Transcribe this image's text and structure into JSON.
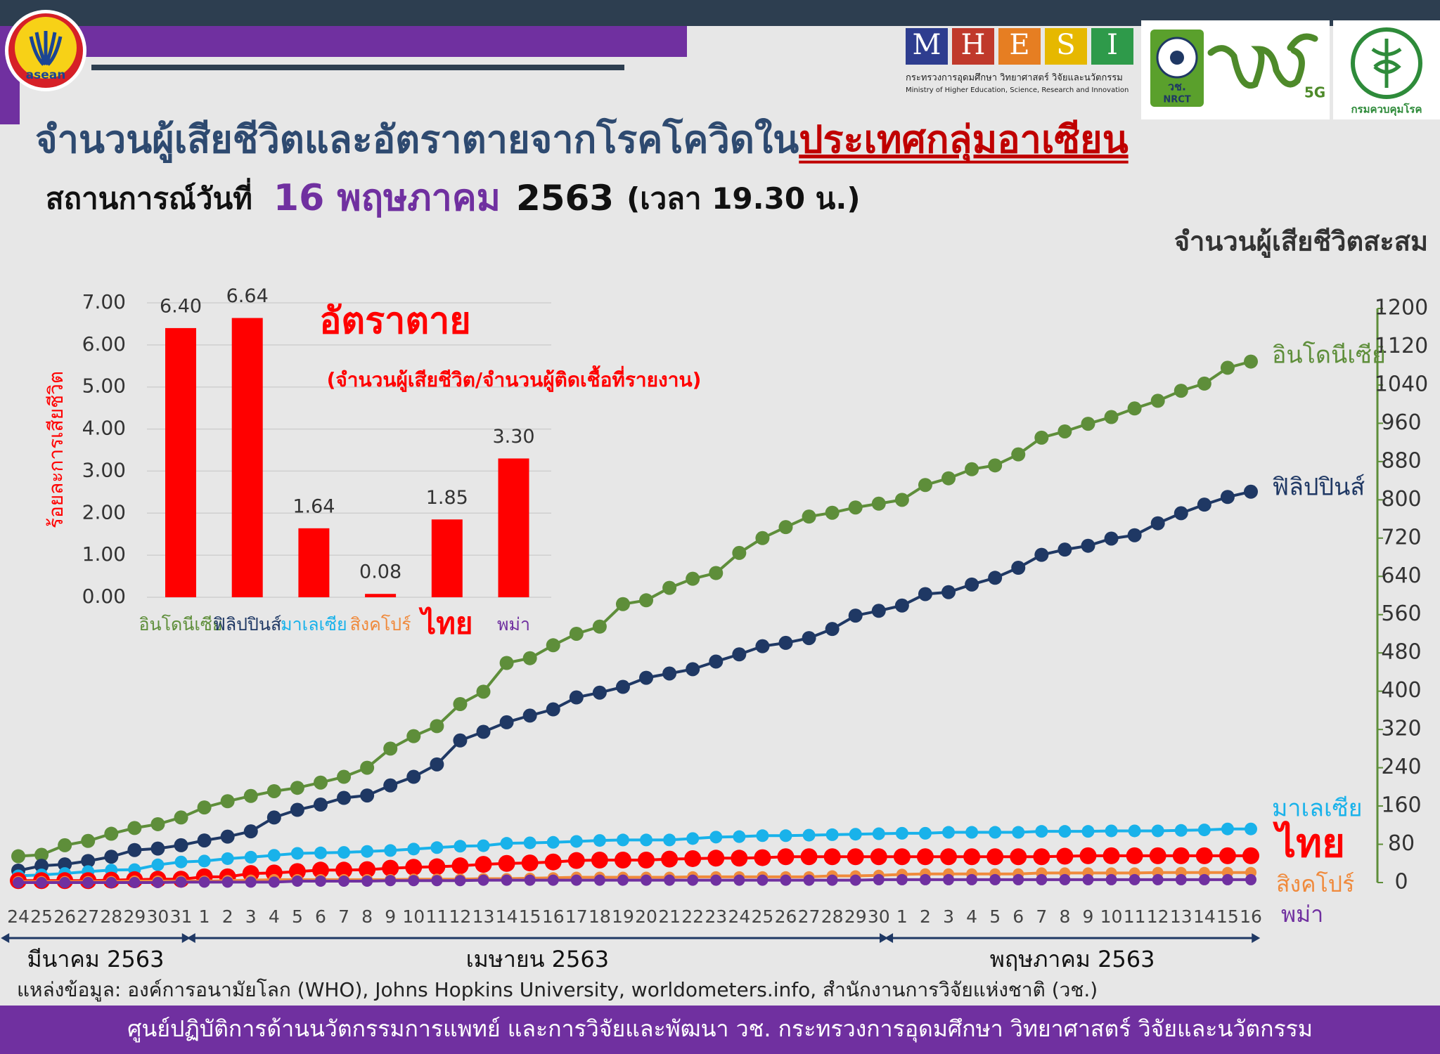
{
  "header": {
    "title": "จำนวนผู้เสียชีวิตและอัตราตายจากโรคโควิดใน",
    "title_highlight": "ประเทศกลุ่มอาเซียน",
    "subtitle_prefix": "สถานการณ์วันที่",
    "date": "16 พฤษภาคม",
    "year": "2563",
    "time": "(เวลา 19.30 น.)"
  },
  "logos": {
    "asean": "asean",
    "mhesi": [
      "M",
      "H",
      "E",
      "S",
      "I"
    ],
    "ministry_th": "กระทรวงการอุดมศึกษา วิทยาศาสตร์ วิจัยและนวัตกรรม",
    "ministry_en": "Ministry of Higher Education, Science, Research and Innovation",
    "nrct": [
      "วช.",
      "NRCT"
    ],
    "fiveg": "5G",
    "ddc": "กรมควบคุมโรค"
  },
  "source": "แหล่งข้อมูล: องค์การอนามัยโลก (WHO), Johns Hopkins University, worldometers.info, สำนักงานการวิจัยแห่งชาติ (วช.)",
  "footer": "ศูนย์ปฏิบัติการด้านนวัตกรรมการแพทย์ และการวิจัยและพัฒนา  วช.   กระทรวงการอุดมศึกษา วิทยาศาสตร์ วิจัยและนวัตกรรม",
  "chart_data": [
    {
      "type": "line",
      "y_label": "จำนวนผู้เสียชีวิตสะสม",
      "categories": [
        "24",
        "25",
        "26",
        "27",
        "28",
        "29",
        "30",
        "31",
        "1",
        "2",
        "3",
        "4",
        "5",
        "6",
        "7",
        "8",
        "9",
        "10",
        "11",
        "12",
        "13",
        "14",
        "15",
        "16",
        "17",
        "18",
        "19",
        "20",
        "21",
        "22",
        "23",
        "24",
        "25",
        "26",
        "27",
        "28",
        "29",
        "30",
        "1",
        "2",
        "3",
        "4",
        "5",
        "6",
        "7",
        "8",
        "9",
        "10",
        "11",
        "12",
        "13",
        "14",
        "15",
        "16"
      ],
      "month_labels": [
        "มีนาคม 2563",
        "เมษายน 2563",
        "พฤษภาคม 2563"
      ],
      "ylim": [
        0,
        1200
      ],
      "yticks": [
        0,
        80,
        160,
        240,
        320,
        400,
        480,
        560,
        640,
        720,
        800,
        880,
        960,
        1040,
        1120,
        1200
      ],
      "series": [
        {
          "name": "อินโดนีเซีย",
          "color": "#5e8e3a",
          "values": [
            55,
            58,
            78,
            87,
            102,
            114,
            122,
            136,
            157,
            170,
            181,
            191,
            198,
            209,
            221,
            240,
            280,
            306,
            327,
            373,
            399,
            459,
            469,
            496,
            520,
            535,
            582,
            590,
            616,
            635,
            647,
            689,
            720,
            743,
            765,
            773,
            784,
            792,
            800,
            831,
            845,
            864,
            872,
            895,
            930,
            943,
            959,
            973,
            991,
            1007,
            1028,
            1043,
            1076,
            1089
          ]
        },
        {
          "name": "ฟิลิปปินส์",
          "color": "#1f3864",
          "values": [
            25,
            35,
            38,
            45,
            54,
            68,
            71,
            78,
            88,
            96,
            107,
            136,
            152,
            163,
            177,
            182,
            203,
            221,
            247,
            297,
            315,
            335,
            349,
            362,
            387,
            397,
            409,
            428,
            437,
            446,
            462,
            477,
            494,
            501,
            511,
            530,
            558,
            568,
            579,
            603,
            607,
            623,
            637,
            658,
            685,
            696,
            704,
            719,
            726,
            751,
            772,
            790,
            806,
            817
          ]
        },
        {
          "name": "มาเลเซีย",
          "color": "#19b2ea",
          "values": [
            14,
            16,
            19,
            23,
            26,
            27,
            37,
            43,
            45,
            50,
            53,
            57,
            61,
            62,
            63,
            65,
            67,
            70,
            73,
            76,
            77,
            82,
            83,
            84,
            86,
            88,
            89,
            89,
            89,
            92,
            95,
            96,
            98,
            98,
            99,
            100,
            101,
            102,
            103,
            103,
            105,
            105,
            105,
            105,
            107,
            107,
            107,
            108,
            108,
            108,
            109,
            110,
            112,
            112
          ]
        },
        {
          "name": "ไทย",
          "color": "#ff0000",
          "values": [
            4,
            4,
            4,
            4,
            5,
            6,
            7,
            7,
            12,
            12,
            19,
            20,
            23,
            26,
            26,
            27,
            30,
            32,
            33,
            35,
            38,
            40,
            41,
            43,
            46,
            47,
            47,
            47,
            49,
            50,
            51,
            51,
            52,
            54,
            54,
            54,
            54,
            54,
            54,
            54,
            54,
            54,
            54,
            54,
            54,
            55,
            56,
            56,
            56,
            56,
            56,
            56,
            56,
            56
          ]
        },
        {
          "name": "สิงคโปร์",
          "color": "#f08a3c",
          "values": [
            2,
            2,
            2,
            2,
            2,
            3,
            3,
            3,
            3,
            4,
            5,
            6,
            6,
            6,
            6,
            6,
            6,
            7,
            7,
            7,
            8,
            8,
            9,
            10,
            11,
            11,
            11,
            11,
            11,
            12,
            12,
            12,
            12,
            12,
            12,
            14,
            14,
            15,
            17,
            18,
            18,
            18,
            18,
            18,
            20,
            20,
            20,
            20,
            20,
            21,
            21,
            21,
            21,
            21
          ]
        },
        {
          "name": "พม่า",
          "color": "#7030a0",
          "values": [
            0,
            0,
            0,
            0,
            0,
            0,
            0,
            1,
            1,
            1,
            1,
            1,
            3,
            3,
            3,
            3,
            4,
            4,
            4,
            4,
            5,
            5,
            5,
            5,
            5,
            5,
            5,
            5,
            5,
            5,
            5,
            5,
            5,
            5,
            5,
            5,
            5,
            6,
            6,
            6,
            6,
            6,
            6,
            6,
            6,
            6,
            6,
            6,
            6,
            6,
            6,
            6,
            6,
            6
          ]
        }
      ]
    },
    {
      "type": "bar",
      "title": "อัตราตาย",
      "subtitle": "(จำนวนผู้เสียชีวิต/จำนวนผู้ติดเชื้อที่รายงาน)",
      "y_label": "ร้อยละการเสียชีวิต",
      "categories": [
        "อินโดนีเซีย",
        "ฟิลิปปินส์",
        "มาเลเซีย",
        "สิงคโปร์",
        "ไทย",
        "พม่า"
      ],
      "category_colors": [
        "#5e8e3a",
        "#1f3864",
        "#19b2ea",
        "#f08a3c",
        "#ff0000",
        "#7030a0"
      ],
      "values": [
        6.4,
        6.64,
        1.64,
        0.08,
        1.85,
        3.3
      ],
      "value_labels": [
        "6.40",
        "6.64",
        "1.64",
        "0.08",
        "1.85",
        "3.30"
      ],
      "color": "#ff0000",
      "grid": true,
      "ylim": [
        0,
        7
      ],
      "yticks": [
        {
          "value": 0,
          "label": "0.00"
        },
        {
          "value": 1,
          "label": "1.00"
        },
        {
          "value": 2,
          "label": "2.00"
        },
        {
          "value": 3,
          "label": "3.00"
        },
        {
          "value": 4,
          "label": "4.00"
        },
        {
          "value": 5,
          "label": "5.00"
        },
        {
          "value": 6,
          "label": "6.00"
        },
        {
          "value": 7,
          "label": "7.00"
        }
      ]
    }
  ]
}
